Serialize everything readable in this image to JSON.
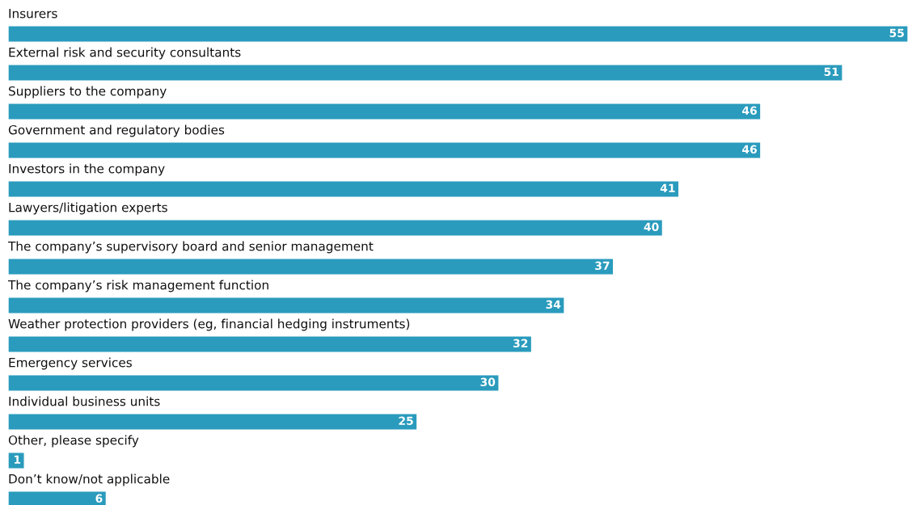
{
  "chart_data": {
    "type": "bar",
    "orientation": "horizontal",
    "data_labels": true,
    "categories": [
      "Insurers",
      "External risk and security consultants",
      "Suppliers to the company",
      "Government and regulatory bodies",
      "Investors in the company",
      "Lawyers/litigation experts",
      "The company’s supervisory board and senior management",
      "The company’s risk management function",
      "Weather protection providers (eg, financial hedging instruments)",
      "Emergency services",
      "Individual business units",
      "Other, please specify",
      "Don’t know/not applicable"
    ],
    "values": [
      55,
      51,
      46,
      46,
      41,
      40,
      37,
      34,
      32,
      30,
      25,
      1,
      6
    ],
    "color": "#2a9bbd"
  }
}
